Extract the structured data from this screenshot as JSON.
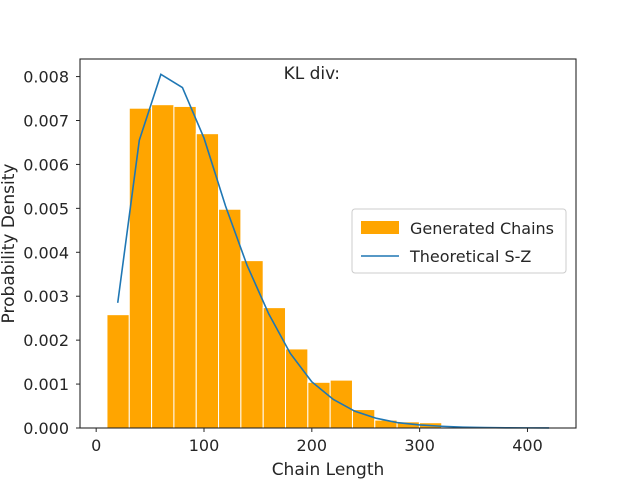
{
  "colors": {
    "bar_fill": "#FFA500",
    "bar_edge": "#ffffff",
    "line": "#1f77b4",
    "axes": "#262626",
    "background": "#ffffff"
  },
  "chart_data": {
    "type": "bar",
    "title": "",
    "annotation": "KL div:",
    "xlabel": "Chain Length",
    "ylabel": "Probability Density",
    "xlim": [
      -15,
      445
    ],
    "ylim": [
      0,
      0.0084
    ],
    "xticks": [
      0,
      100,
      200,
      300,
      400
    ],
    "xtick_labels": [
      "0",
      "100",
      "200",
      "300",
      "400"
    ],
    "yticks": [
      0,
      0.001,
      0.002,
      0.003,
      0.004,
      0.005,
      0.006,
      0.007,
      0.008
    ],
    "ytick_labels": [
      "0.000",
      "0.001",
      "0.002",
      "0.003",
      "0.004",
      "0.005",
      "0.006",
      "0.007",
      "0.008"
    ],
    "grid": false,
    "legend_position": "center-right",
    "histogram": {
      "name": "Generated Chains",
      "bin_edges": [
        10,
        30.7,
        51.4,
        72.1,
        92.8,
        113.5,
        134.2,
        154.9,
        175.6,
        196.3,
        217,
        237.7,
        258.4,
        279.1,
        299.8,
        320.5,
        341.2,
        361.9,
        382.6,
        403.3,
        424
      ],
      "values": [
        0.00258,
        0.00728,
        0.00736,
        0.00732,
        0.0067,
        0.00498,
        0.00381,
        0.00274,
        0.0018,
        0.00104,
        0.00109,
        0.00042,
        0.00018,
        0.00014,
        0.00012,
        2e-05,
        2e-05,
        1e-05,
        1e-05,
        1e-05
      ]
    },
    "line": {
      "name": "Theoretical S-Z",
      "x": [
        20,
        40,
        60,
        80,
        100,
        120,
        140,
        160,
        180,
        200,
        220,
        240,
        260,
        280,
        300,
        320,
        340,
        360,
        380,
        400,
        420
      ],
      "y": [
        0.00285,
        0.00655,
        0.00805,
        0.00775,
        0.0066,
        0.00505,
        0.0037,
        0.0026,
        0.0017,
        0.00105,
        0.00065,
        0.00038,
        0.00022,
        0.00012,
        7e-05,
        4e-05,
        2e-05,
        1e-05,
        5e-06,
        3e-06,
        2e-06
      ]
    }
  }
}
